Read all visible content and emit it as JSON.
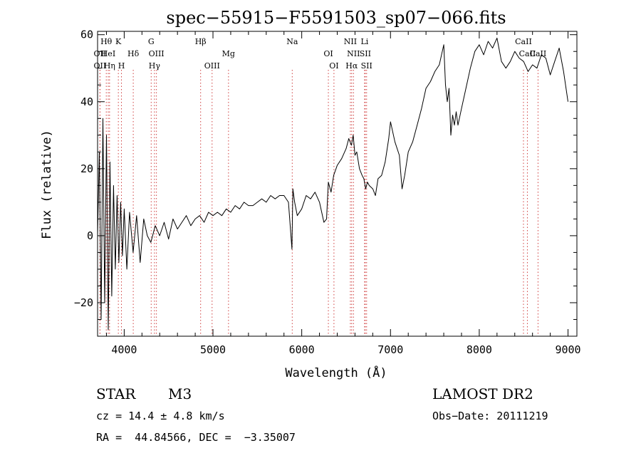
{
  "chart_data": {
    "type": "line",
    "title": "spec−55915−F5591503_sp07−066.fits",
    "xlabel": "Wavelength (Å)",
    "ylabel": "Flux (relative)",
    "xlim": [
      3700,
      9100
    ],
    "ylim": [
      -30,
      61
    ],
    "x_ticks": [
      4000,
      5000,
      6000,
      7000,
      8000,
      9000
    ],
    "y_ticks": [
      -20,
      0,
      20,
      40,
      60
    ],
    "y_tick_labels": [
      "−20",
      "0",
      "20",
      "40",
      "60"
    ],
    "grid": false,
    "series": [
      {
        "color": "#000000",
        "x": [
          3700,
          3720,
          3740,
          3760,
          3780,
          3800,
          3820,
          3840,
          3860,
          3880,
          3900,
          3920,
          3940,
          3960,
          3980,
          4000,
          4030,
          4060,
          4100,
          4140,
          4180,
          4220,
          4260,
          4300,
          4350,
          4400,
          4450,
          4500,
          4550,
          4600,
          4650,
          4700,
          4750,
          4800,
          4850,
          4900,
          4950,
          5000,
          5050,
          5100,
          5150,
          5200,
          5250,
          5300,
          5350,
          5400,
          5450,
          5500,
          5550,
          5600,
          5650,
          5700,
          5750,
          5800,
          5850,
          5890,
          5900,
          5920,
          5950,
          6000,
          6050,
          6100,
          6150,
          6200,
          6250,
          6280,
          6300,
          6330,
          6360,
          6400,
          6450,
          6500,
          6530,
          6560,
          6580,
          6600,
          6620,
          6650,
          6680,
          6700,
          6720,
          6740,
          6760,
          6800,
          6830,
          6860,
          6900,
          6940,
          6980,
          7000,
          7050,
          7100,
          7130,
          7160,
          7200,
          7250,
          7300,
          7350,
          7400,
          7450,
          7500,
          7550,
          7600,
          7620,
          7640,
          7660,
          7680,
          7700,
          7720,
          7740,
          7760,
          7800,
          7850,
          7900,
          7950,
          8000,
          8050,
          8100,
          8150,
          8200,
          8250,
          8300,
          8350,
          8400,
          8450,
          8500,
          8550,
          8600,
          8650,
          8700,
          8750,
          8800,
          8850,
          8900,
          8950,
          9000
        ],
        "y": [
          0,
          25,
          -25,
          35,
          -20,
          30,
          -28,
          22,
          -18,
          15,
          -10,
          12,
          -8,
          10,
          -6,
          8,
          -10,
          7,
          -5,
          6,
          -8,
          5,
          0,
          -2,
          3,
          0,
          4,
          -1,
          5,
          2,
          4,
          6,
          3,
          5,
          6,
          4,
          7,
          6,
          7,
          6,
          8,
          7,
          9,
          8,
          10,
          9,
          9,
          10,
          11,
          10,
          12,
          11,
          12,
          12,
          10,
          -4,
          14,
          10,
          6,
          8,
          12,
          11,
          13,
          10,
          4,
          5,
          16,
          13,
          18,
          21,
          23,
          26,
          29,
          27,
          30,
          24,
          25,
          20,
          18,
          17,
          14,
          16,
          15,
          14,
          12,
          17,
          18,
          22,
          29,
          34,
          28,
          24,
          14,
          18,
          25,
          28,
          33,
          38,
          44,
          46,
          49,
          51,
          57,
          45,
          40,
          44,
          30,
          36,
          33,
          37,
          33,
          38,
          44,
          50,
          55,
          57,
          54,
          58,
          56,
          59,
          52,
          50,
          52,
          55,
          53,
          52,
          49,
          51,
          50,
          54,
          53,
          48,
          52,
          56,
          49,
          40
        ]
      }
    ],
    "line_markers": [
      {
        "label": "Hθ",
        "x": 3798,
        "row": 1
      },
      {
        "label": "K",
        "x": 3934,
        "row": 1
      },
      {
        "label": "OII",
        "x": 3727,
        "row": 2
      },
      {
        "label": "HeI",
        "x": 3820,
        "row": 2
      },
      {
        "label": "OII",
        "x": 3727,
        "row": 3
      },
      {
        "label": "Hη",
        "x": 3835,
        "row": 3
      },
      {
        "label": "H",
        "x": 3969,
        "row": 3
      },
      {
        "label": "Hδ",
        "x": 4102,
        "row": 2
      },
      {
        "label": "G",
        "x": 4304,
        "row": 1
      },
      {
        "label": "OIII",
        "x": 4363,
        "row": 2
      },
      {
        "label": "Hγ",
        "x": 4341,
        "row": 3
      },
      {
        "label": "Hβ",
        "x": 4861,
        "row": 1
      },
      {
        "label": "Mg",
        "x": 5175,
        "row": 2
      },
      {
        "label": "OIII",
        "x": 4990,
        "row": 3
      },
      {
        "label": "Na",
        "x": 5893,
        "row": 1
      },
      {
        "label": "OI",
        "x": 6300,
        "row": 2
      },
      {
        "label": "OI",
        "x": 6363,
        "row": 3
      },
      {
        "label": "NII",
        "x": 6548,
        "row": 1
      },
      {
        "label": "NII",
        "x": 6583,
        "row": 2
      },
      {
        "label": "Hα",
        "x": 6563,
        "row": 3
      },
      {
        "label": "Li",
        "x": 6708,
        "row": 1
      },
      {
        "label": "SII",
        "x": 6716,
        "row": 2
      },
      {
        "label": "SII",
        "x": 6731,
        "row": 3
      },
      {
        "label": "CaII",
        "x": 8498,
        "row": 1
      },
      {
        "label": "CaII",
        "x": 8542,
        "row": 2
      },
      {
        "label": "CaII",
        "x": 8662,
        "row": 2
      }
    ]
  },
  "info": {
    "object_class": "STAR",
    "subclass": "M3",
    "survey": "LAMOST DR2",
    "redshift": "cz = 14.4 ± 4.8 km/s",
    "obs_date": "Obs−Date: 20111219",
    "coords": "RA =  44.84566, DEC =  −3.35007"
  }
}
